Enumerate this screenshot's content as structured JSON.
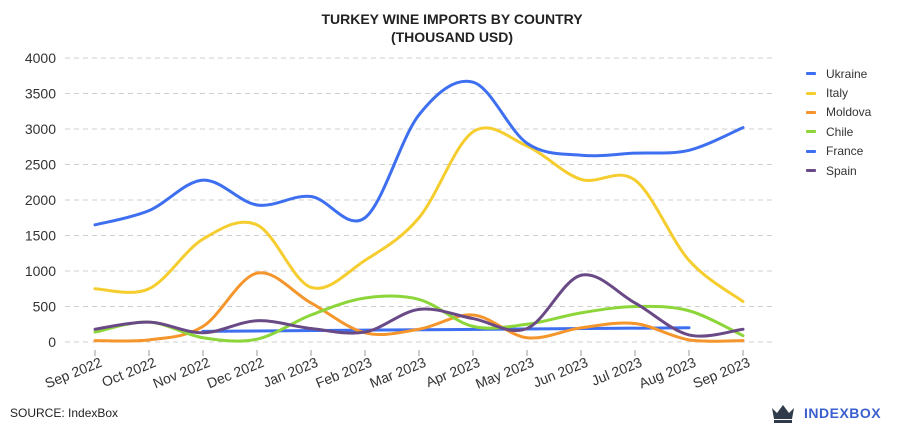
{
  "chart_data": {
    "type": "line",
    "title_lines": [
      "TURKEY WINE IMPORTS BY COUNTRY",
      "(THOUSAND USD)"
    ],
    "categories": [
      "Sep 2022",
      "Oct 2022",
      "Nov 2022",
      "Dec 2022",
      "Jan 2023",
      "Feb 2023",
      "Mar 2023",
      "Apr 2023",
      "May 2023",
      "Jun 2023",
      "Jul 2023",
      "Aug 2023",
      "Sep 2023"
    ],
    "ylim": [
      0,
      4000
    ],
    "yticks": [
      "0",
      "500",
      "1000",
      "1500",
      "2000",
      "2500",
      "3000",
      "3500",
      "4000"
    ],
    "ytick_values": [
      0,
      500,
      1000,
      1500,
      2000,
      2500,
      3000,
      3500,
      4000
    ],
    "grid": true,
    "legend_position": "right",
    "series": [
      {
        "name": "Ukraine",
        "color": "#3d6ff0",
        "values": [
          null,
          null,
          150,
          null,
          null,
          null,
          null,
          null,
          null,
          null,
          null,
          200,
          null
        ]
      },
      {
        "name": "Italy",
        "color": "#f5cd2e",
        "values": [
          750,
          750,
          1450,
          1650,
          770,
          1150,
          1750,
          2960,
          2760,
          2290,
          2280,
          1150,
          570
        ]
      },
      {
        "name": "Moldova",
        "color": "#f4962c",
        "values": [
          20,
          30,
          220,
          970,
          550,
          130,
          180,
          380,
          60,
          200,
          260,
          30,
          20
        ]
      },
      {
        "name": "Chile",
        "color": "#8dd63a",
        "values": [
          140,
          280,
          60,
          40,
          380,
          620,
          600,
          220,
          250,
          410,
          500,
          440,
          90
        ]
      },
      {
        "name": "France",
        "color": "#3d6ff0",
        "values": [
          1650,
          1850,
          2280,
          1930,
          2050,
          1750,
          3200,
          3660,
          2800,
          2630,
          2660,
          2700,
          3020
        ]
      },
      {
        "name": "Spain",
        "color": "#6a4a86",
        "values": [
          180,
          280,
          130,
          300,
          190,
          140,
          460,
          330,
          190,
          940,
          550,
          100,
          180
        ]
      }
    ]
  },
  "footer": {
    "source": "SOURCE: IndexBox",
    "brand": "INDEXBOX",
    "brand_color": "#3b5fcf"
  }
}
